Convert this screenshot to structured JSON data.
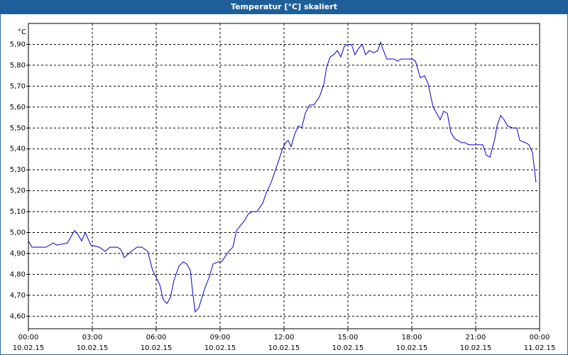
{
  "chart_data": {
    "type": "line",
    "title": "Temperatur [°C] skaliert",
    "y_axis_label": "°C",
    "series": [
      {
        "name": "Temperatur",
        "color": "#0000cc",
        "x": [
          0,
          0.17,
          0.5,
          0.83,
          1.17,
          1.33,
          1.83,
          2.17,
          2.33,
          2.5,
          2.67,
          2.93,
          3.33,
          3.6,
          3.83,
          4.17,
          4.33,
          4.5,
          4.83,
          5.1,
          5.33,
          5.6,
          5.83,
          6.17,
          6.33,
          6.5,
          6.67,
          6.83,
          7.07,
          7.27,
          7.43,
          7.6,
          7.73,
          7.83,
          8.0,
          8.27,
          8.5,
          8.67,
          8.93,
          9.07,
          9.27,
          9.4,
          9.6,
          9.77,
          9.93,
          10.17,
          10.33,
          10.5,
          10.73,
          11.0,
          11.17,
          11.4,
          11.6,
          11.77,
          11.93,
          12.07,
          12.2,
          12.33,
          12.5,
          12.67,
          12.83,
          13.0,
          13.2,
          13.4,
          13.67,
          13.87,
          14.0,
          14.17,
          14.33,
          14.5,
          14.67,
          14.83,
          15.0,
          15.17,
          15.33,
          15.5,
          15.67,
          15.83,
          16.0,
          16.23,
          16.4,
          16.53,
          16.67,
          16.83,
          17.17,
          17.33,
          17.5,
          18.0,
          18.17,
          18.4,
          18.6,
          18.77,
          19.0,
          19.17,
          19.33,
          19.5,
          19.67,
          19.83,
          20.0,
          20.17,
          20.33,
          20.5,
          20.67,
          21.17,
          21.33,
          21.5,
          21.67,
          21.9,
          22.0,
          22.17,
          22.33,
          22.5,
          22.73,
          22.93,
          23.07,
          23.33,
          23.5,
          23.67,
          23.83
        ],
        "values": [
          4.96,
          4.93,
          4.93,
          4.93,
          4.95,
          4.94,
          4.95,
          5.01,
          4.99,
          4.96,
          5.0,
          4.94,
          4.93,
          4.91,
          4.93,
          4.93,
          4.92,
          4.88,
          4.91,
          4.93,
          4.93,
          4.91,
          4.82,
          4.75,
          4.68,
          4.66,
          4.69,
          4.77,
          4.84,
          4.86,
          4.85,
          4.82,
          4.7,
          4.62,
          4.64,
          4.73,
          4.79,
          4.85,
          4.86,
          4.86,
          4.89,
          4.91,
          4.93,
          5.01,
          5.03,
          5.06,
          5.09,
          5.1,
          5.1,
          5.14,
          5.19,
          5.24,
          5.3,
          5.35,
          5.4,
          5.43,
          5.44,
          5.41,
          5.47,
          5.51,
          5.5,
          5.57,
          5.61,
          5.61,
          5.65,
          5.71,
          5.79,
          5.84,
          5.85,
          5.87,
          5.84,
          5.89,
          5.9,
          5.9,
          5.85,
          5.88,
          5.9,
          5.85,
          5.87,
          5.86,
          5.87,
          5.91,
          5.87,
          5.83,
          5.83,
          5.82,
          5.83,
          5.83,
          5.82,
          5.74,
          5.75,
          5.71,
          5.6,
          5.57,
          5.54,
          5.58,
          5.57,
          5.48,
          5.45,
          5.44,
          5.43,
          5.43,
          5.42,
          5.42,
          5.42,
          5.37,
          5.36,
          5.45,
          5.51,
          5.56,
          5.54,
          5.51,
          5.5,
          5.5,
          5.44,
          5.43,
          5.42,
          5.38,
          5.24
        ]
      }
    ],
    "xlim": [
      0,
      24
    ],
    "xticks": [
      {
        "value": 0,
        "label": "00:00"
      },
      {
        "value": 3,
        "label": "03:00"
      },
      {
        "value": 6,
        "label": "06:00"
      },
      {
        "value": 9,
        "label": "09:00"
      },
      {
        "value": 12,
        "label": "12:00"
      },
      {
        "value": 15,
        "label": "15:00"
      },
      {
        "value": 18,
        "label": "18:00"
      },
      {
        "value": 21,
        "label": "21:00"
      },
      {
        "value": 24,
        "label": "00:00"
      }
    ],
    "xtick_dates": [
      "10.02.15",
      "10.02.15",
      "10.02.15",
      "10.02.15",
      "10.02.15",
      "10.02.15",
      "10.02.15",
      "10.02.15",
      "11.02.15"
    ],
    "ylim": [
      4.54,
      6.0
    ],
    "yticks": [
      {
        "value": 4.6,
        "label": "4,60"
      },
      {
        "value": 4.7,
        "label": "4,70"
      },
      {
        "value": 4.8,
        "label": "4,80"
      },
      {
        "value": 4.9,
        "label": "4,90"
      },
      {
        "value": 5.0,
        "label": "5,00"
      },
      {
        "value": 5.1,
        "label": "5,10"
      },
      {
        "value": 5.2,
        "label": "5,20"
      },
      {
        "value": 5.3,
        "label": "5,30"
      },
      {
        "value": 5.4,
        "label": "5,40"
      },
      {
        "value": 5.5,
        "label": "5,50"
      },
      {
        "value": 5.6,
        "label": "5,60"
      },
      {
        "value": 5.7,
        "label": "5,70"
      },
      {
        "value": 5.8,
        "label": "5,80"
      },
      {
        "value": 5.9,
        "label": "5,90"
      }
    ],
    "grid": true
  }
}
